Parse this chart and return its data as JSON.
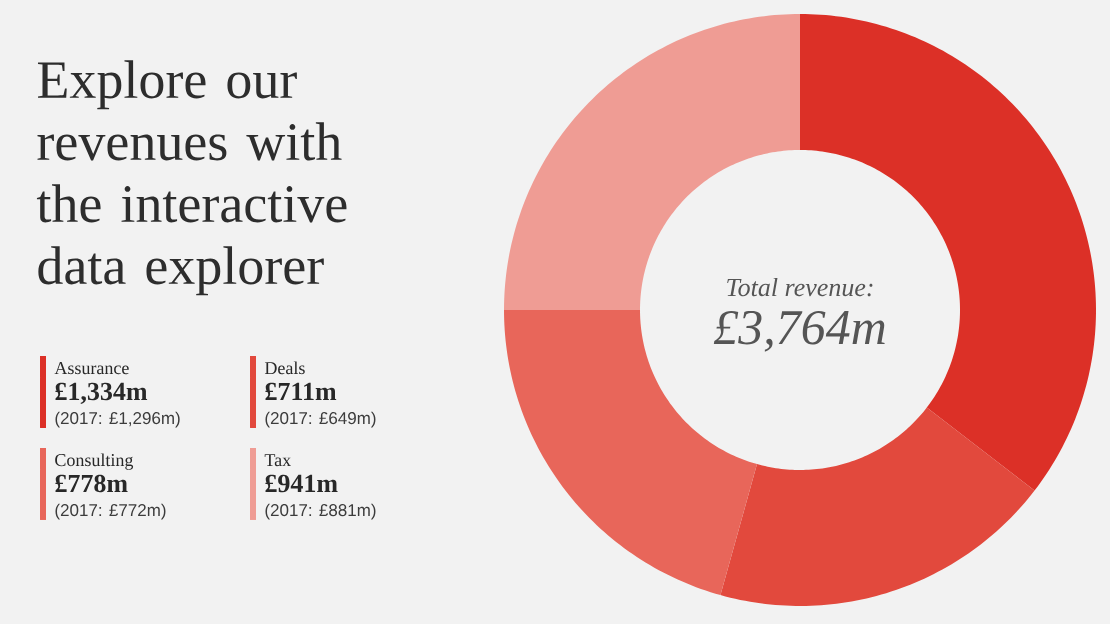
{
  "chart_data": {
    "type": "donut",
    "title": "Explore our revenues with the interactive data explorer",
    "categories": [
      "Assurance",
      "Deals",
      "Consulting",
      "Tax"
    ],
    "values": [
      1334,
      711,
      778,
      941
    ],
    "value_labels": [
      "£1,334m",
      "£711m",
      "£778m",
      "£941m"
    ],
    "colors": [
      "#dc3027",
      "#e2493d",
      "#e8665a",
      "#ef9c94"
    ],
    "legend": "left",
    "annotations": [
      "Total revenue:",
      "£3,764m",
      "(2017: £1,296m)",
      "(2017: £649m)",
      "(2017: £772m)",
      "(2017: £881m)"
    ]
  }
}
